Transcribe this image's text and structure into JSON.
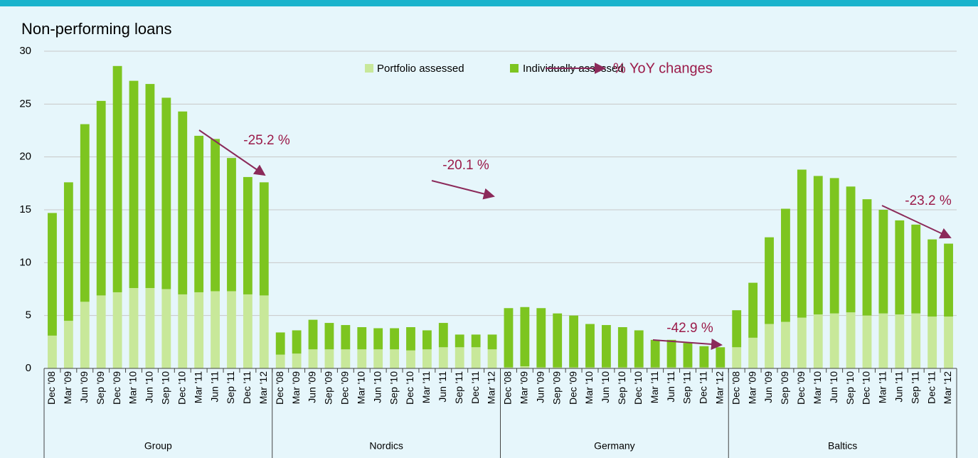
{
  "chart_data": {
    "type": "stacked_bar",
    "title": "Non-performing loans",
    "categories": [
      "Dec '08",
      "Mar '09",
      "Jun '09",
      "Sep '09",
      "Dec '09",
      "Mar '10",
      "Jun '10",
      "Sep '10",
      "Dec '10",
      "Mar '11",
      "Jun '11",
      "Sep '11",
      "Dec '11",
      "Mar '12",
      "Dec '08",
      "Mar '09",
      "Jun '09",
      "Sep '09",
      "Dec '09",
      "Mar '10",
      "Jun '10",
      "Sep '10",
      "Dec '10",
      "Mar '11",
      "Jun '11",
      "Sep '11",
      "Dec '11",
      "Mar '12",
      "Dec '08",
      "Mar '09",
      "Jun '09",
      "Sep '09",
      "Dec '09",
      "Mar '10",
      "Jun '10",
      "Sep '10",
      "Dec '10",
      "Mar '11",
      "Jun '11",
      "Sep '11",
      "Dec '11",
      "Mar '12",
      "Dec '08",
      "Mar '09",
      "Jun '09",
      "Sep '09",
      "Dec '09",
      "Mar '10",
      "Jun '10",
      "Sep '10",
      "Dec '10",
      "Mar '11",
      "Jun '11",
      "Sep '11",
      "Dec '11",
      "Mar '12"
    ],
    "groups": [
      "Group",
      "Nordics",
      "Germany",
      "Baltics"
    ],
    "series": [
      {
        "name": "Portfolio assessed",
        "color": "#c8e89a",
        "values": [
          3.1,
          4.5,
          6.3,
          6.9,
          7.2,
          7.6,
          7.6,
          7.5,
          7.0,
          7.2,
          7.3,
          7.3,
          7.0,
          6.9,
          1.3,
          1.4,
          1.8,
          1.8,
          1.8,
          1.8,
          1.8,
          1.8,
          1.7,
          1.8,
          2.0,
          2.0,
          2.0,
          1.8,
          0.1,
          0.2,
          0.1,
          0.1,
          0.1,
          0.1,
          0.1,
          0.1,
          0.1,
          0.1,
          0.1,
          0.1,
          0.1,
          0.1,
          2.0,
          2.9,
          4.2,
          4.4,
          4.8,
          5.1,
          5.2,
          5.3,
          5.0,
          5.2,
          5.1,
          5.2,
          4.9,
          4.9
        ]
      },
      {
        "name": "Individually assessed",
        "color": "#7dc520",
        "values": [
          11.6,
          13.1,
          16.8,
          18.4,
          21.4,
          19.6,
          19.3,
          18.1,
          17.3,
          14.8,
          14.4,
          12.6,
          11.1,
          10.7,
          2.1,
          2.2,
          2.8,
          2.5,
          2.3,
          2.1,
          2.0,
          2.0,
          2.2,
          1.8,
          2.3,
          1.2,
          1.2,
          1.4,
          5.6,
          5.6,
          5.6,
          5.1,
          4.9,
          4.1,
          4.0,
          3.8,
          3.5,
          2.6,
          2.6,
          2.3,
          2.0,
          1.9,
          3.5,
          5.2,
          8.2,
          10.7,
          14.0,
          13.1,
          12.8,
          11.9,
          11.0,
          9.8,
          8.9,
          8.4,
          7.3,
          6.9
        ]
      }
    ],
    "arrow_legend": "% YoY changes",
    "annotations": [
      "-25.2 %",
      "-20.1 %",
      "-42.9 %",
      "-23.2 %"
    ],
    "ylim": [
      0,
      30
    ],
    "yticks": [
      0,
      5,
      10,
      15,
      20,
      25,
      30
    ],
    "grid": true
  }
}
